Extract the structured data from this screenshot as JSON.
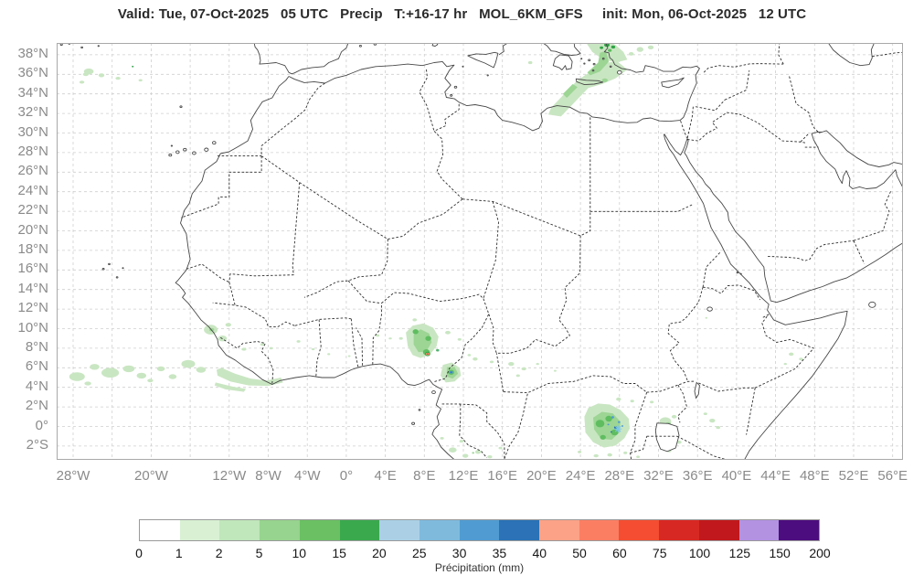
{
  "title": "Valid: Tue, 07-Oct-2025   05 UTC   Precip   T:+16-17 hr   MOL_6KM_GFS     init: Mon, 06-Oct-2025   12 UTC",
  "map": {
    "lat_ticks": [
      {
        "label": "38°N",
        "value": 38
      },
      {
        "label": "36°N",
        "value": 36
      },
      {
        "label": "34°N",
        "value": 34
      },
      {
        "label": "32°N",
        "value": 32
      },
      {
        "label": "30°N",
        "value": 30
      },
      {
        "label": "28°N",
        "value": 28
      },
      {
        "label": "26°N",
        "value": 26
      },
      {
        "label": "24°N",
        "value": 24
      },
      {
        "label": "22°N",
        "value": 22
      },
      {
        "label": "20°N",
        "value": 20
      },
      {
        "label": "18°N",
        "value": 18
      },
      {
        "label": "16°N",
        "value": 16
      },
      {
        "label": "14°N",
        "value": 14
      },
      {
        "label": "12°N",
        "value": 12
      },
      {
        "label": "10°N",
        "value": 10
      },
      {
        "label": "8°N",
        "value": 8
      },
      {
        "label": "6°N",
        "value": 6
      },
      {
        "label": "4°N",
        "value": 4
      },
      {
        "label": "2°N",
        "value": 2
      },
      {
        "label": "0°",
        "value": 0
      },
      {
        "label": "2°S",
        "value": -2
      }
    ],
    "lon_ticks": [
      {
        "label": "28°W",
        "value": -28
      },
      {
        "label": "20°W",
        "value": -20
      },
      {
        "label": "12°W",
        "value": -12
      },
      {
        "label": "8°W",
        "value": -8
      },
      {
        "label": "4°W",
        "value": -4
      },
      {
        "label": "0°",
        "value": 0
      },
      {
        "label": "4°E",
        "value": 4
      },
      {
        "label": "8°E",
        "value": 8
      },
      {
        "label": "12°E",
        "value": 12
      },
      {
        "label": "16°E",
        "value": 16
      },
      {
        "label": "20°E",
        "value": 20
      },
      {
        "label": "24°E",
        "value": 24
      },
      {
        "label": "28°E",
        "value": 28
      },
      {
        "label": "32°E",
        "value": 32
      },
      {
        "label": "36°E",
        "value": 36
      },
      {
        "label": "40°E",
        "value": 40
      },
      {
        "label": "44°E",
        "value": 44
      },
      {
        "label": "48°E",
        "value": 48
      },
      {
        "label": "52°E",
        "value": 52
      },
      {
        "label": "56°E",
        "value": 56
      }
    ],
    "grid": {
      "lon_start": -28,
      "lon_end": 56,
      "lon_step": 4,
      "lat_start": -2,
      "lat_end": 38,
      "lat_step": 2
    }
  },
  "colorbar": {
    "title": "Précipitation (mm)",
    "tick_labels": [
      "0",
      "1",
      "2",
      "5",
      "10",
      "15",
      "20",
      "25",
      "30",
      "35",
      "40",
      "50",
      "60",
      "75",
      "100",
      "125",
      "150",
      "200"
    ],
    "segment_colors": [
      "#ffffff",
      "#d9f0d3",
      "#c0e6bb",
      "#97d48f",
      "#6ac063",
      "#3aa94e",
      "#abd0e6",
      "#7fbadd",
      "#509cd2",
      "#2b72b6",
      "#fba287",
      "#fb7e63",
      "#f44d31",
      "#d82823",
      "#c0181c",
      "#b392e2",
      "#4c0d7e"
    ]
  },
  "precip": {
    "levels": {
      "l1": "#c9e6c2",
      "l2": "#9cd594",
      "l3": "#5fbd60",
      "l4": "#31a347",
      "o": "#fb9d82",
      "b1": "#4f9ad1",
      "b2": "#2a70b3",
      "r": "#f4502f"
    },
    "polygons": [
      {
        "level": "l1",
        "pts": [
          [
            27.8,
            37.3
          ],
          [
            28.8,
            36.5
          ],
          [
            27.6,
            35.6
          ],
          [
            26.2,
            35.0
          ],
          [
            24.8,
            34.6
          ],
          [
            22.0,
            31.7
          ],
          [
            20.7,
            31.9
          ],
          [
            21.0,
            32.6
          ],
          [
            23.6,
            35.3
          ],
          [
            24.6,
            36.0
          ],
          [
            25.8,
            36.6
          ],
          [
            26.6,
            37.2
          ]
        ]
      },
      {
        "level": "l1",
        "pts": [
          [
            24.6,
            39.21
          ],
          [
            25.2,
            38.3
          ],
          [
            26.2,
            37.6
          ],
          [
            27.6,
            37.2
          ],
          [
            28.8,
            37.5
          ],
          [
            28.4,
            38.3
          ],
          [
            27.6,
            39.0
          ],
          [
            27.2,
            39.21
          ]
        ]
      },
      {
        "level": "l2",
        "pts": [
          [
            25.0,
            35.9
          ],
          [
            26.0,
            36.3
          ],
          [
            26.9,
            37.3
          ],
          [
            26.6,
            38.4
          ],
          [
            26.0,
            38.2
          ],
          [
            25.8,
            37.2
          ],
          [
            24.7,
            36.2
          ]
        ]
      },
      {
        "level": "l2",
        "pts": [
          [
            22.6,
            33.6
          ],
          [
            23.7,
            34.7
          ],
          [
            23.2,
            35.0
          ],
          [
            22.2,
            34.0
          ]
        ]
      },
      {
        "level": "l1",
        "pts": [
          [
            -13.3,
            5.8
          ],
          [
            -12.8,
            6.0
          ],
          [
            -11.4,
            5.4
          ],
          [
            -9.8,
            4.9
          ],
          [
            -8.2,
            4.7
          ],
          [
            -6.7,
            5.0
          ],
          [
            -6.5,
            4.5
          ],
          [
            -8.0,
            4.15
          ],
          [
            -10.0,
            4.2
          ],
          [
            -11.9,
            4.6
          ],
          [
            -13.2,
            5.2
          ]
        ]
      },
      {
        "level": "l1",
        "pts": [
          [
            -13.4,
            4.5
          ],
          [
            -11.7,
            4.1
          ],
          [
            -10.3,
            3.85
          ],
          [
            -10.5,
            3.55
          ],
          [
            -12.4,
            3.8
          ],
          [
            -13.5,
            4.2
          ]
        ]
      },
      {
        "level": "l1",
        "pts": [
          [
            6.1,
            9.6
          ],
          [
            6.8,
            10.3
          ],
          [
            7.9,
            10.55
          ],
          [
            8.9,
            10.1
          ],
          [
            9.45,
            9.2
          ],
          [
            9.25,
            8.2
          ],
          [
            8.5,
            7.3
          ],
          [
            7.6,
            7.0
          ],
          [
            6.8,
            7.3
          ],
          [
            6.3,
            8.2
          ]
        ]
      },
      {
        "level": "l2",
        "pts": [
          [
            6.9,
            9.4
          ],
          [
            7.6,
            9.95
          ],
          [
            8.5,
            9.5
          ],
          [
            8.75,
            8.6
          ],
          [
            8.2,
            7.7
          ],
          [
            7.4,
            7.6
          ],
          [
            6.9,
            8.4
          ]
        ]
      },
      {
        "level": "l1",
        "pts": [
          [
            9.9,
            6.3
          ],
          [
            10.8,
            6.55
          ],
          [
            11.6,
            6.0
          ],
          [
            11.75,
            5.2
          ],
          [
            11.1,
            4.6
          ],
          [
            10.2,
            4.5
          ],
          [
            9.65,
            5.2
          ]
        ]
      },
      {
        "level": "l2",
        "pts": [
          [
            10.3,
            6.05
          ],
          [
            11.1,
            6.1
          ],
          [
            11.45,
            5.4
          ],
          [
            10.9,
            4.9
          ],
          [
            10.3,
            5.1
          ]
        ]
      },
      {
        "level": "l1",
        "pts": [
          [
            24.4,
            1.0
          ],
          [
            24.8,
            1.9
          ],
          [
            25.8,
            2.35
          ],
          [
            27.0,
            2.25
          ],
          [
            28.1,
            1.7
          ],
          [
            28.95,
            0.8
          ],
          [
            29.05,
            -0.2
          ],
          [
            28.5,
            -1.2
          ],
          [
            27.6,
            -1.95
          ],
          [
            26.4,
            -2.15
          ],
          [
            25.3,
            -1.6
          ],
          [
            24.5,
            -0.6
          ]
        ]
      },
      {
        "level": "l2",
        "pts": [
          [
            25.3,
            0.9
          ],
          [
            26.2,
            1.5
          ],
          [
            27.3,
            1.35
          ],
          [
            28.1,
            0.5
          ],
          [
            28.0,
            -0.6
          ],
          [
            27.2,
            -1.35
          ],
          [
            26.1,
            -1.25
          ],
          [
            25.4,
            -0.3
          ]
        ]
      }
    ],
    "blobs": [
      [
        -26.4,
        36.3,
        0.5,
        0.3,
        "l1"
      ],
      [
        -25.1,
        35.9,
        0.3,
        0.2,
        "l1"
      ],
      [
        -23.4,
        35.6,
        0.25,
        0.15,
        "l1"
      ],
      [
        -21.1,
        35.4,
        0.2,
        0.12,
        "l1"
      ],
      [
        -27.1,
        35.2,
        0.25,
        0.15,
        "l1"
      ],
      [
        -26.7,
        36.0,
        0.3,
        0.18,
        "l1"
      ],
      [
        -21.9,
        36.8,
        0.09,
        0.08,
        "l4"
      ],
      [
        18.85,
        37.2,
        0.22,
        0.15,
        "l1"
      ],
      [
        30.1,
        38.55,
        0.35,
        0.25,
        "l1"
      ],
      [
        31.2,
        38.75,
        0.3,
        0.2,
        "l1"
      ],
      [
        29.2,
        38.1,
        0.25,
        0.18,
        "l1"
      ],
      [
        26.7,
        39.0,
        0.28,
        0.2,
        "l4"
      ],
      [
        27.35,
        38.8,
        0.22,
        0.16,
        "l4"
      ],
      [
        26.15,
        38.72,
        0.18,
        0.13,
        "l4"
      ],
      [
        27.0,
        38.45,
        0.2,
        0.15,
        "l3"
      ],
      [
        26.5,
        35.4,
        0.3,
        0.2,
        "l2"
      ],
      [
        -27.6,
        5.1,
        0.8,
        0.45,
        "l1"
      ],
      [
        -25.8,
        6.1,
        0.5,
        0.3,
        "l1"
      ],
      [
        -24.2,
        5.5,
        0.9,
        0.5,
        "l1"
      ],
      [
        -22.3,
        5.9,
        0.6,
        0.35,
        "l1"
      ],
      [
        -21.0,
        5.2,
        0.5,
        0.3,
        "l1"
      ],
      [
        -19.0,
        5.9,
        0.4,
        0.25,
        "l1"
      ],
      [
        -16.2,
        6.4,
        0.7,
        0.4,
        "l1"
      ],
      [
        -14.9,
        5.8,
        0.5,
        0.3,
        "l1"
      ],
      [
        -17.8,
        5.1,
        0.4,
        0.25,
        "l1"
      ],
      [
        -26.5,
        4.4,
        0.35,
        0.2,
        "l1"
      ],
      [
        -20.1,
        4.7,
        0.3,
        0.18,
        "l1"
      ],
      [
        -13.9,
        9.9,
        0.7,
        0.5,
        "l1"
      ],
      [
        -12.7,
        9.0,
        0.45,
        0.3,
        "l1"
      ],
      [
        -12.1,
        10.4,
        0.3,
        0.2,
        "l1"
      ],
      [
        -10.5,
        7.9,
        0.25,
        0.15,
        "l1"
      ],
      [
        -8.6,
        8.4,
        0.22,
        0.14,
        "l1"
      ],
      [
        -7.7,
        8.0,
        0.18,
        0.12,
        "l1"
      ],
      [
        -4.9,
        8.7,
        0.2,
        0.13,
        "l1"
      ],
      [
        -3.4,
        7.9,
        0.16,
        0.1,
        "l1"
      ],
      [
        -1.8,
        7.4,
        0.15,
        0.1,
        "l1"
      ],
      [
        3.2,
        9.3,
        0.2,
        0.13,
        "l1"
      ],
      [
        4.5,
        9.0,
        0.16,
        0.1,
        "l1"
      ],
      [
        0.3,
        7.2,
        0.13,
        0.09,
        "l1"
      ],
      [
        -13.8,
        9.9,
        0.25,
        0.18,
        "l2"
      ],
      [
        7.0,
        10.9,
        0.22,
        0.15,
        "l1"
      ],
      [
        5.6,
        9.0,
        0.2,
        0.13,
        "l1"
      ],
      [
        10.4,
        9.6,
        0.28,
        0.18,
        "l1"
      ],
      [
        11.6,
        8.9,
        0.2,
        0.13,
        "l1"
      ],
      [
        12.6,
        7.3,
        0.18,
        0.12,
        "l1"
      ],
      [
        7.1,
        9.7,
        0.3,
        0.25,
        "l3"
      ],
      [
        8.4,
        9.0,
        0.3,
        0.25,
        "l3"
      ],
      [
        8.2,
        7.6,
        0.35,
        0.3,
        "l3"
      ],
      [
        8.33,
        7.42,
        0.27,
        0.22,
        "l4"
      ],
      [
        8.33,
        7.42,
        0.17,
        0.13,
        "o"
      ],
      [
        8.33,
        7.42,
        0.1,
        0.08,
        "r"
      ],
      [
        9.35,
        7.8,
        0.17,
        0.13,
        "l3"
      ],
      [
        9.35,
        7.8,
        0.08,
        0.07,
        "b1"
      ],
      [
        10.75,
        5.55,
        0.3,
        0.25,
        "l3"
      ],
      [
        10.75,
        5.55,
        0.17,
        0.14,
        "b1"
      ],
      [
        10.75,
        5.55,
        0.08,
        0.07,
        "b2"
      ],
      [
        13.2,
        6.9,
        0.25,
        0.17,
        "l1"
      ],
      [
        14.9,
        6.6,
        0.2,
        0.13,
        "l1"
      ],
      [
        16.9,
        6.4,
        0.3,
        0.2,
        "l1"
      ],
      [
        18.2,
        5.9,
        0.25,
        0.16,
        "l1"
      ],
      [
        17.6,
        5.2,
        0.2,
        0.13,
        "l1"
      ],
      [
        19.6,
        6.4,
        0.16,
        0.1,
        "l1"
      ],
      [
        21.4,
        5.7,
        0.14,
        0.09,
        "l1"
      ],
      [
        27.9,
        2.8,
        0.25,
        0.17,
        "l1"
      ],
      [
        29.3,
        2.6,
        0.2,
        0.13,
        "l1"
      ],
      [
        31.3,
        2.5,
        0.2,
        0.13,
        "l1"
      ],
      [
        26.0,
        0.3,
        0.45,
        0.38,
        "l3"
      ],
      [
        26.9,
        0.8,
        0.35,
        0.3,
        "l3"
      ],
      [
        27.5,
        -0.6,
        0.38,
        0.3,
        "l3"
      ],
      [
        26.3,
        -1.1,
        0.3,
        0.24,
        "l3"
      ],
      [
        27.3,
        0.95,
        0.14,
        0.12,
        "b1"
      ],
      [
        27.95,
        0.45,
        0.12,
        0.1,
        "b1"
      ],
      [
        27.6,
        -0.1,
        0.16,
        0.13,
        "b2"
      ],
      [
        28.3,
        0.05,
        0.1,
        0.08,
        "b1"
      ],
      [
        26.85,
        0.2,
        0.1,
        0.08,
        "b1"
      ],
      [
        27.15,
        -0.55,
        0.09,
        0.07,
        "b2"
      ],
      [
        32.7,
        0.5,
        0.6,
        0.45,
        "l1"
      ],
      [
        33.4,
        -0.3,
        0.4,
        0.3,
        "l1"
      ],
      [
        33.0,
        0.2,
        0.3,
        0.24,
        "l2"
      ],
      [
        33.6,
        1.0,
        0.25,
        0.18,
        "l1"
      ],
      [
        34.1,
        -1.6,
        0.25,
        0.17,
        "l1"
      ],
      [
        33.1,
        -2.5,
        0.2,
        0.14,
        "l1"
      ],
      [
        37.5,
        0.6,
        0.3,
        0.2,
        "l1"
      ],
      [
        38.1,
        -0.1,
        0.22,
        0.15,
        "l1"
      ],
      [
        36.8,
        1.3,
        0.2,
        0.13,
        "l1"
      ],
      [
        27.0,
        -2.9,
        0.25,
        0.17,
        "l1"
      ],
      [
        28.6,
        -2.7,
        0.2,
        0.14,
        "l1"
      ],
      [
        25.6,
        -3.0,
        0.25,
        0.16,
        "l1"
      ],
      [
        29.9,
        -3.1,
        0.18,
        0.12,
        "l1"
      ],
      [
        23.9,
        -2.6,
        0.2,
        0.13,
        "l1"
      ],
      [
        10.9,
        -2.4,
        0.4,
        0.26,
        "l1"
      ],
      [
        12.2,
        -3.0,
        0.3,
        0.2,
        "l1"
      ],
      [
        13.5,
        -2.6,
        0.3,
        0.2,
        "l1"
      ],
      [
        14.7,
        -3.1,
        0.25,
        0.16,
        "l1"
      ],
      [
        11.8,
        -1.5,
        0.22,
        0.14,
        "l1"
      ],
      [
        9.8,
        -1.2,
        0.2,
        0.13,
        "l1"
      ],
      [
        13.0,
        -2.7,
        0.12,
        0.09,
        "l2"
      ],
      [
        15.8,
        -2.2,
        0.2,
        0.12,
        "l1"
      ],
      [
        45.6,
        7.4,
        0.25,
        0.17,
        "l1"
      ],
      [
        46.6,
        6.9,
        0.2,
        0.13,
        "l1"
      ],
      [
        45.0,
        6.4,
        0.16,
        0.1,
        "l1"
      ],
      [
        36.9,
        11.1,
        0.12,
        0.09,
        "l1"
      ]
    ],
    "markers": [
      {
        "type": "star",
        "lon": 27.85,
        "lat": -0.25,
        "color": "#7cc6ea"
      }
    ]
  }
}
